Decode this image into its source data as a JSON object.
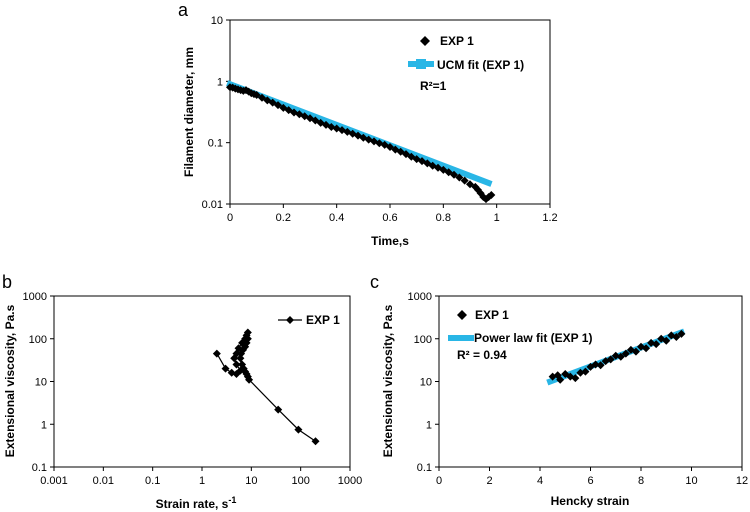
{
  "chart_data": [
    {
      "panel": "a",
      "type": "scatter",
      "xscale": "linear",
      "yscale": "log",
      "xlim": [
        0,
        1.2
      ],
      "ylim": [
        0.01,
        10
      ],
      "xticks": [
        "0",
        "0.2",
        "0.4",
        "0.6",
        "0.8",
        "1",
        "1.2"
      ],
      "yticks": [
        "0.01",
        "0.1",
        "1",
        "10"
      ],
      "xlabel": "Time,s",
      "ylabel": "Filament diameter, mm",
      "annotation": "R²=1",
      "series": [
        {
          "name": "EXP 1",
          "marker": "diamond",
          "color": "#000000",
          "points": [
            [
              0.0,
              0.8
            ],
            [
              0.01,
              0.79
            ],
            [
              0.02,
              0.76
            ],
            [
              0.03,
              0.74
            ],
            [
              0.04,
              0.72
            ],
            [
              0.05,
              0.7
            ],
            [
              0.06,
              0.72
            ],
            [
              0.07,
              0.68
            ],
            [
              0.08,
              0.64
            ],
            [
              0.09,
              0.62
            ],
            [
              0.1,
              0.6
            ],
            [
              0.12,
              0.54
            ],
            [
              0.14,
              0.49
            ],
            [
              0.16,
              0.45
            ],
            [
              0.18,
              0.41
            ],
            [
              0.2,
              0.37
            ],
            [
              0.22,
              0.34
            ],
            [
              0.24,
              0.31
            ],
            [
              0.26,
              0.29
            ],
            [
              0.28,
              0.27
            ],
            [
              0.3,
              0.25
            ],
            [
              0.32,
              0.23
            ],
            [
              0.34,
              0.21
            ],
            [
              0.36,
              0.195
            ],
            [
              0.38,
              0.18
            ],
            [
              0.4,
              0.17
            ],
            [
              0.42,
              0.16
            ],
            [
              0.44,
              0.15
            ],
            [
              0.46,
              0.14
            ],
            [
              0.48,
              0.13
            ],
            [
              0.5,
              0.12
            ],
            [
              0.52,
              0.112
            ],
            [
              0.54,
              0.105
            ],
            [
              0.56,
              0.098
            ],
            [
              0.58,
              0.092
            ],
            [
              0.6,
              0.085
            ],
            [
              0.62,
              0.077
            ],
            [
              0.64,
              0.071
            ],
            [
              0.66,
              0.065
            ],
            [
              0.68,
              0.059
            ],
            [
              0.7,
              0.054
            ],
            [
              0.72,
              0.05
            ],
            [
              0.74,
              0.046
            ],
            [
              0.76,
              0.042
            ],
            [
              0.78,
              0.039
            ],
            [
              0.8,
              0.036
            ],
            [
              0.82,
              0.033
            ],
            [
              0.84,
              0.03
            ],
            [
              0.86,
              0.027
            ],
            [
              0.88,
              0.024
            ],
            [
              0.9,
              0.021
            ],
            [
              0.92,
              0.019
            ],
            [
              0.93,
              0.017
            ],
            [
              0.94,
              0.015
            ],
            [
              0.95,
              0.013
            ],
            [
              0.96,
              0.012
            ],
            [
              0.97,
              0.013
            ],
            [
              0.98,
              0.014
            ]
          ]
        },
        {
          "name": "UCM fit (EXP 1)",
          "style": "line",
          "color": "#29b6e6",
          "x": [
            0.0,
            0.97
          ],
          "y": [
            0.9,
            0.022
          ]
        }
      ]
    },
    {
      "panel": "b",
      "type": "line",
      "xscale": "log",
      "yscale": "log",
      "xlim": [
        0.001,
        1000
      ],
      "ylim": [
        0.1,
        1000
      ],
      "xticks": [
        "0.001",
        "0.01",
        "0.1",
        "1",
        "10",
        "100",
        "1000"
      ],
      "yticks": [
        "0.1",
        "1",
        "10",
        "100",
        "1000"
      ],
      "xlabel": "Strain rate, s",
      "xlabel_sup": "-1",
      "ylabel": "Extensional viscosity, Pa.s",
      "series": [
        {
          "name": "EXP 1",
          "marker": "diamond",
          "color": "#000000",
          "points": [
            [
              200,
              0.4
            ],
            [
              90,
              0.75
            ],
            [
              35,
              2.2
            ],
            [
              9,
              11
            ],
            [
              8.5,
              13
            ],
            [
              8,
              15
            ],
            [
              7.5,
              17
            ],
            [
              7,
              20
            ],
            [
              6.5,
              25
            ],
            [
              6,
              35
            ],
            [
              6.2,
              45
            ],
            [
              6.8,
              55
            ],
            [
              7.5,
              65
            ],
            [
              8,
              80
            ],
            [
              8.5,
              100
            ],
            [
              8,
              120
            ],
            [
              8.5,
              140
            ],
            [
              7.5,
              100
            ],
            [
              6.5,
              80
            ],
            [
              5.5,
              60
            ],
            [
              5,
              45
            ],
            [
              4.5,
              35
            ],
            [
              5,
              25
            ],
            [
              6,
              18
            ],
            [
              5,
              15
            ],
            [
              4,
              16
            ],
            [
              3,
              20
            ],
            [
              2,
              45
            ]
          ]
        }
      ]
    },
    {
      "panel": "c",
      "type": "scatter",
      "xscale": "linear",
      "yscale": "log",
      "xlim": [
        0,
        12
      ],
      "ylim": [
        0.1,
        1000
      ],
      "xticks": [
        "0",
        "2",
        "4",
        "6",
        "8",
        "10",
        "12"
      ],
      "yticks": [
        "0.1",
        "1",
        "10",
        "100",
        "1000"
      ],
      "xlabel": "Hencky strain",
      "ylabel": "Extensional viscosity, Pa.s",
      "annotation": "R² = 0.94",
      "series": [
        {
          "name": "EXP 1",
          "marker": "diamond",
          "color": "#000000",
          "points": [
            [
              4.5,
              13
            ],
            [
              4.7,
              14
            ],
            [
              4.8,
              11
            ],
            [
              5.0,
              15
            ],
            [
              5.2,
              13
            ],
            [
              5.4,
              12
            ],
            [
              5.6,
              16
            ],
            [
              5.8,
              17
            ],
            [
              6.0,
              22
            ],
            [
              6.2,
              25
            ],
            [
              6.4,
              24
            ],
            [
              6.6,
              30
            ],
            [
              6.8,
              33
            ],
            [
              7.0,
              40
            ],
            [
              7.2,
              38
            ],
            [
              7.4,
              45
            ],
            [
              7.6,
              55
            ],
            [
              7.8,
              50
            ],
            [
              8.0,
              65
            ],
            [
              8.2,
              60
            ],
            [
              8.4,
              80
            ],
            [
              8.6,
              75
            ],
            [
              8.8,
              100
            ],
            [
              9.0,
              90
            ],
            [
              9.2,
              120
            ],
            [
              9.4,
              110
            ],
            [
              9.6,
              130
            ]
          ]
        },
        {
          "name": "Power law fit (EXP 1)",
          "style": "line",
          "color": "#29b6e6",
          "x": [
            4.4,
            9.6
          ],
          "y": [
            10,
            140
          ]
        }
      ]
    }
  ],
  "labels": {
    "panel_a": "a",
    "panel_b": "b",
    "panel_c": "c"
  },
  "legends": {
    "a_exp": "EXP 1",
    "a_fit": "UCM fit (EXP 1)",
    "a_r2": "R²=1",
    "b_exp": "EXP 1",
    "c_exp": "EXP 1",
    "c_fit": "Power law fit (EXP 1)",
    "c_r2": "R² = 0.94"
  }
}
